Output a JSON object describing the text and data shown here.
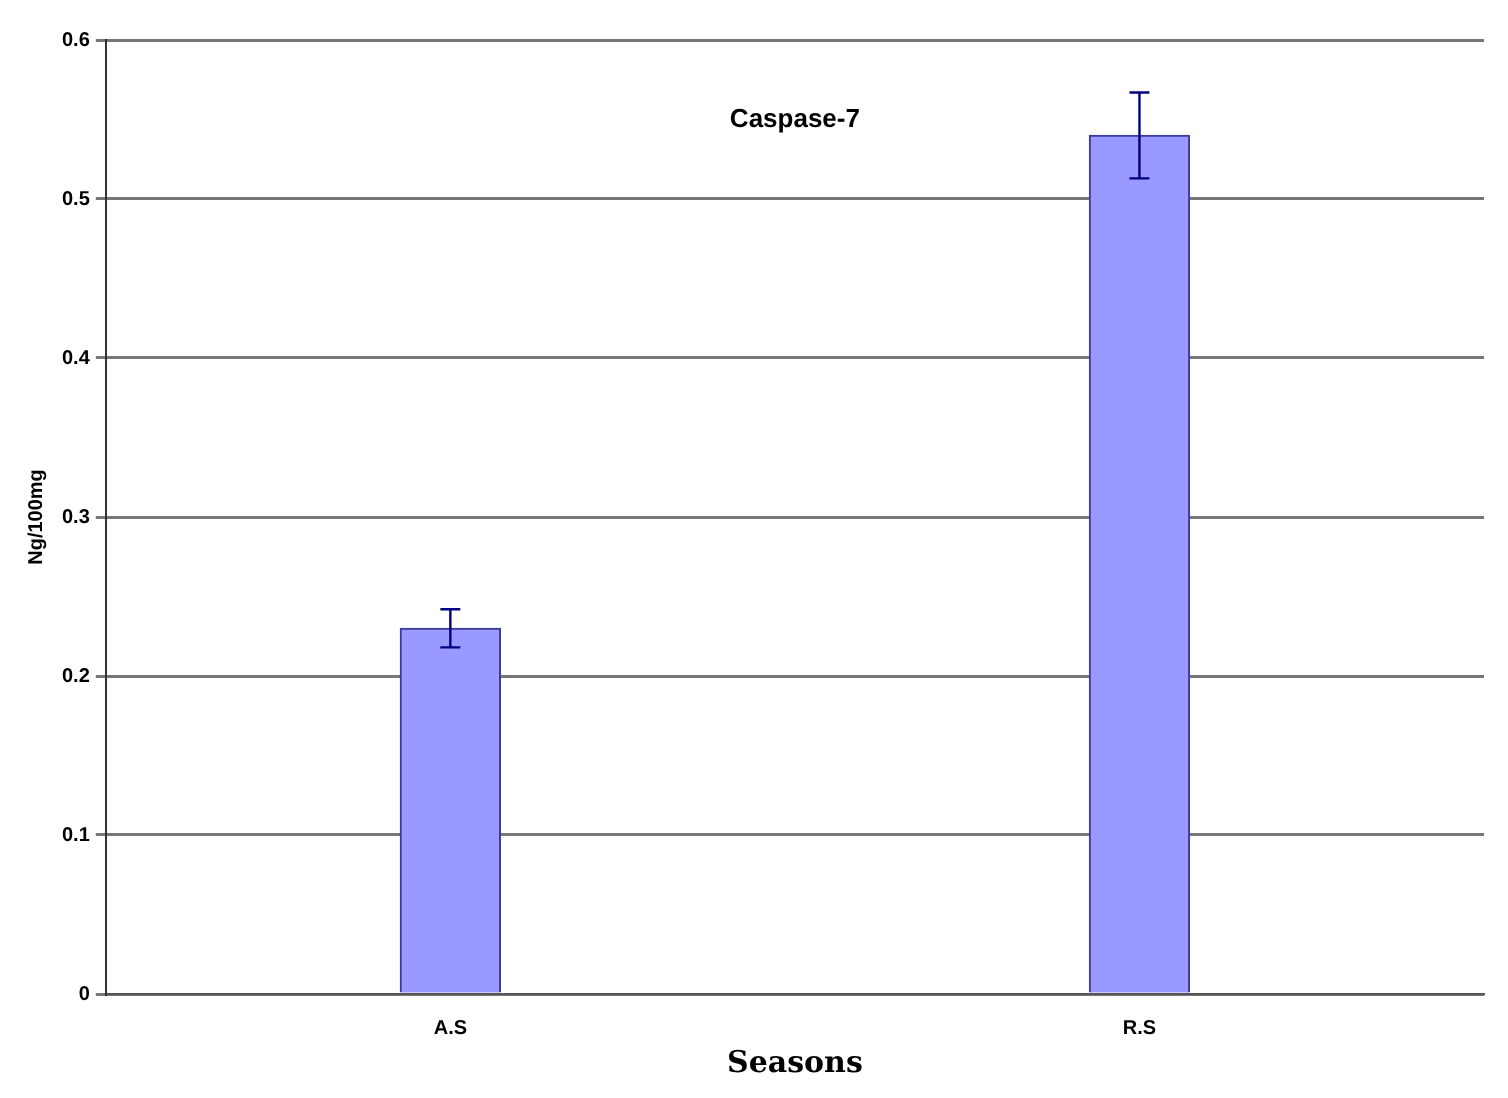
{
  "chart_data": {
    "type": "bar",
    "title": "Caspase-7",
    "xlabel": "Seasons",
    "ylabel": "Ng/100mg",
    "categories": [
      "A.S",
      "R.S"
    ],
    "values": [
      0.23,
      0.54
    ],
    "errors": [
      0.012,
      0.027
    ],
    "color": "#9999ff",
    "ylim": [
      0,
      0.6
    ],
    "yticks": [
      0,
      0.1,
      0.2,
      0.3,
      0.4,
      0.5,
      0.6
    ],
    "grid": "y"
  }
}
